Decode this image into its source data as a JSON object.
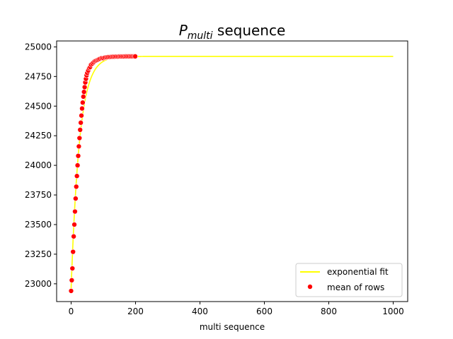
{
  "chart_data": {
    "type": "scatter",
    "title": {
      "symbol": "P",
      "subscript": "multi",
      "suffix": " sequence"
    },
    "xlabel": "multi sequence",
    "ylabel": "",
    "xlim": [
      -45,
      1045
    ],
    "ylim": [
      22850,
      25050
    ],
    "xticks": [
      0,
      200,
      400,
      600,
      800,
      1000
    ],
    "yticks": [
      23000,
      23250,
      23500,
      23750,
      24000,
      24250,
      24500,
      24750,
      25000
    ],
    "grid": false,
    "legend_position": "lower-right",
    "series": [
      {
        "name": "exponential fit",
        "kind": "line",
        "color": "#ffff00",
        "model": {
          "form": "a - b*exp(-x/c)",
          "a": 24920,
          "b": 1960,
          "c": 26,
          "x_range": [
            0,
            1000
          ]
        }
      },
      {
        "name": "mean of rows",
        "kind": "scatter",
        "color": "#ff0000",
        "edgecolor": "#ffffff",
        "x": [
          0,
          2,
          4,
          6,
          8,
          10,
          12,
          14,
          16,
          18,
          20,
          22,
          24,
          26,
          28,
          30,
          32,
          34,
          36,
          38,
          40,
          42,
          44,
          46,
          48,
          50,
          53,
          56,
          59,
          62,
          66,
          70,
          74,
          78,
          82,
          86,
          90,
          95,
          100,
          105,
          110,
          115,
          120,
          125,
          130,
          135,
          140,
          145,
          150,
          155,
          160,
          165,
          170,
          175,
          180,
          185,
          190,
          195,
          199
        ],
        "y": [
          22940,
          23030,
          23130,
          23270,
          23400,
          23500,
          23610,
          23720,
          23820,
          23910,
          24000,
          24080,
          24160,
          24230,
          24300,
          24360,
          24420,
          24480,
          24530,
          24580,
          24620,
          24660,
          24700,
          24730,
          24760,
          24780,
          24800,
          24820,
          24830,
          24850,
          24860,
          24870,
          24880,
          24885,
          24890,
          24895,
          24900,
          24905,
          24905,
          24910,
          24912,
          24914,
          24915,
          24916,
          24917,
          24917,
          24918,
          24918,
          24919,
          24919,
          24919,
          24919,
          24920,
          24920,
          24920,
          24920,
          24920,
          24920,
          24920
        ]
      }
    ]
  }
}
